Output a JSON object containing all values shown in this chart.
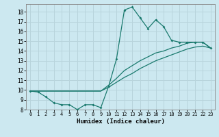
{
  "title": "",
  "xlabel": "Humidex (Indice chaleur)",
  "bg_color": "#cce8f0",
  "grid_color": "#b8d4dc",
  "line_color": "#1a7a6e",
  "xlim": [
    -0.5,
    23.5
  ],
  "ylim": [
    8,
    18.8
  ],
  "xticks": [
    0,
    1,
    2,
    3,
    4,
    5,
    6,
    7,
    8,
    9,
    10,
    11,
    12,
    13,
    14,
    15,
    16,
    17,
    18,
    19,
    20,
    21,
    22,
    23
  ],
  "yticks": [
    8,
    9,
    10,
    11,
    12,
    13,
    14,
    15,
    16,
    17,
    18
  ],
  "line1_x": [
    0,
    1,
    2,
    3,
    4,
    5,
    6,
    7,
    8,
    9,
    10,
    11,
    12,
    13,
    14,
    15,
    16,
    17,
    18,
    19,
    20,
    21,
    22,
    23
  ],
  "line1_y": [
    9.9,
    9.8,
    9.3,
    8.7,
    8.5,
    8.5,
    8.0,
    8.5,
    8.5,
    8.2,
    10.4,
    13.2,
    18.2,
    18.5,
    17.4,
    16.3,
    17.2,
    16.5,
    15.1,
    14.9,
    14.9,
    14.9,
    14.9,
    14.3
  ],
  "line2_x": [
    0,
    9,
    10,
    11,
    12,
    13,
    14,
    15,
    16,
    17,
    18,
    19,
    20,
    21,
    22,
    23
  ],
  "line2_y": [
    9.9,
    9.9,
    10.5,
    11.2,
    12.0,
    12.5,
    13.0,
    13.4,
    13.8,
    14.0,
    14.3,
    14.5,
    14.8,
    14.9,
    14.9,
    14.3
  ],
  "line3_x": [
    0,
    9,
    10,
    11,
    12,
    13,
    14,
    15,
    16,
    17,
    18,
    19,
    20,
    21,
    22,
    23
  ],
  "line3_y": [
    9.9,
    9.9,
    10.3,
    10.8,
    11.3,
    11.7,
    12.2,
    12.6,
    13.0,
    13.3,
    13.6,
    13.9,
    14.2,
    14.4,
    14.5,
    14.3
  ]
}
